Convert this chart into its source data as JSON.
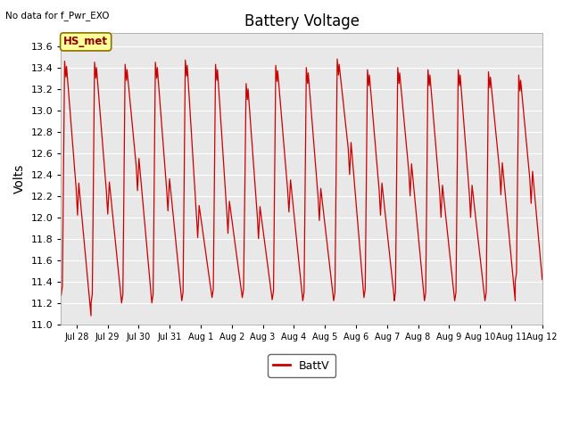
{
  "title": "Battery Voltage",
  "top_left_text": "No data for f_Pwr_EXO",
  "ylabel": "Volts",
  "legend_label": "BattV",
  "line_color": "#cc0000",
  "fig_facecolor": "#ffffff",
  "plot_bg_color": "#e8e8e8",
  "ylim": [
    11.0,
    13.72
  ],
  "yticks": [
    11.0,
    11.2,
    11.4,
    11.6,
    11.8,
    12.0,
    12.2,
    12.4,
    12.6,
    12.8,
    13.0,
    13.2,
    13.4,
    13.6
  ],
  "hs_met_label": "HS_met",
  "hs_met_box_color": "#ffff99",
  "hs_met_text_color": "#8b0000",
  "xtick_labels": [
    "Jul 28",
    "Jul 29",
    "Jul 30",
    "Jul 31",
    "Aug 1",
    "Aug 2",
    "Aug 3",
    "Aug 4",
    "Aug 5",
    "Aug 6",
    "Aug 7",
    "Aug 8",
    "Aug 9",
    "Aug 10",
    "Aug 11",
    "Aug 12"
  ],
  "xtick_positions": [
    0.5,
    1.5,
    2.5,
    3.5,
    4.5,
    5.5,
    6.5,
    7.5,
    8.5,
    9.5,
    10.5,
    11.5,
    12.5,
    13.5,
    14.5,
    15.5
  ]
}
